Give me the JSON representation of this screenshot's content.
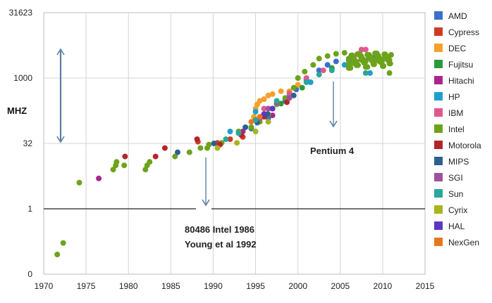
{
  "chart_data": {
    "type": "scatter",
    "title": "",
    "xlabel": "",
    "ylabel": "MHZ",
    "xlim": [
      1970,
      2015
    ],
    "x_ticks": [
      "1970",
      "1975",
      "1980",
      "1985",
      "1990",
      "1995",
      "2000",
      "2005",
      "2010",
      "2015"
    ],
    "y_scale": "log",
    "y_ticks": [
      "0",
      "1",
      "32",
      "1000",
      "31623"
    ],
    "grid": true,
    "legend_position": "right",
    "colors": {
      "AMD": "#3b6fc9",
      "Cypress": "#d03a26",
      "DEC": "#f2a12b",
      "Fujitsu": "#2a9a38",
      "Hitachi": "#a8268e",
      "HP": "#1f9fcf",
      "IBM": "#e0588e",
      "Intel": "#6ca31b",
      "Motorola": "#b3252a",
      "MIPS": "#2e5f91",
      "SGI": "#a0509e",
      "Sun": "#2aa79b",
      "Cyrix": "#a7b51e",
      "HAL": "#5e36c4",
      "NexGen": "#e8761c"
    },
    "series": [
      {
        "name": "AMD",
        "points": [
          [
            1994.5,
            70
          ],
          [
            1995.2,
            95
          ],
          [
            1996.5,
            120
          ],
          [
            1998.5,
            300
          ],
          [
            1999.8,
            550
          ],
          [
            2001,
            900
          ],
          [
            2002.5,
            1500
          ],
          [
            2003.5,
            2000
          ],
          [
            2004.5,
            2400
          ],
          [
            2006,
            2600
          ],
          [
            2007.5,
            2800
          ],
          [
            2009,
            3000
          ]
        ]
      },
      {
        "name": "Cypress",
        "points": [
          [
            1988.2,
            35
          ],
          [
            1990.5,
            33
          ],
          [
            1992,
            40
          ],
          [
            1993.5,
            45
          ]
        ]
      },
      {
        "name": "DEC",
        "points": [
          [
            1994.8,
            130
          ],
          [
            1995,
            200
          ],
          [
            1995.2,
            250
          ],
          [
            1995.5,
            300
          ],
          [
            1996,
            330
          ],
          [
            1996.5,
            400
          ],
          [
            1997,
            430
          ],
          [
            1998,
            500
          ],
          [
            1999,
            500
          ],
          [
            2000,
            700
          ]
        ]
      },
      {
        "name": "Fujitsu",
        "points": [
          [
            1996,
            150
          ],
          [
            1998,
            260
          ],
          [
            2000.5,
            600
          ],
          [
            2004,
            1700
          ],
          [
            2008,
            2500
          ]
        ]
      },
      {
        "name": "Hitachi",
        "points": [
          [
            1976.5,
            5
          ],
          [
            1993.5,
            60
          ],
          [
            1997,
            140
          ]
        ]
      },
      {
        "name": "HP",
        "points": [
          [
            1992,
            60
          ],
          [
            1995,
            170
          ],
          [
            1999,
            400
          ],
          [
            2001.5,
            800
          ],
          [
            2005.5,
            2000
          ],
          [
            2008.5,
            1300
          ]
        ]
      },
      {
        "name": "IBM",
        "points": [
          [
            1996,
            200
          ],
          [
            1999,
            450
          ],
          [
            2001,
            1000
          ],
          [
            2003,
            1500
          ],
          [
            2007,
            3500
          ],
          [
            2007.5,
            4500
          ],
          [
            2008,
            4500
          ]
        ]
      },
      {
        "name": "Intel",
        "points": [
          [
            1971.6,
            0.2
          ],
          [
            1972.3,
            0.3
          ],
          [
            1974.2,
            4
          ],
          [
            1978.2,
            8
          ],
          [
            1978.5,
            10
          ],
          [
            1978.6,
            12
          ],
          [
            1979.5,
            10
          ],
          [
            1982,
            8
          ],
          [
            1982.2,
            10
          ],
          [
            1982.5,
            12
          ],
          [
            1985.5,
            16
          ],
          [
            1987.2,
            20
          ],
          [
            1988.5,
            25
          ],
          [
            1989.3,
            25
          ],
          [
            1989.5,
            30
          ],
          [
            1991,
            33
          ],
          [
            1993,
            60
          ],
          [
            1994.5,
            75
          ],
          [
            1995.5,
            100
          ],
          [
            1996.5,
            150
          ],
          [
            1997.5,
            250
          ],
          [
            1998.5,
            350
          ],
          [
            1999.5,
            600
          ],
          [
            2000,
            1000
          ],
          [
            2000.8,
            1400
          ],
          [
            2001.8,
            2000
          ],
          [
            2002.5,
            2800
          ],
          [
            2003.5,
            3200
          ],
          [
            2004.5,
            3600
          ],
          [
            2005.5,
            3800
          ],
          [
            2006,
            2800
          ],
          [
            2006.5,
            2200
          ],
          [
            2007,
            2000
          ],
          [
            2007.5,
            2600
          ],
          [
            2008,
            2400
          ],
          [
            2008.5,
            2800
          ],
          [
            2009,
            2600
          ],
          [
            2009.5,
            2500
          ],
          [
            2010,
            2700
          ],
          [
            2010.5,
            3000
          ],
          [
            2010.8,
            1300
          ],
          [
            2011,
            3400
          ]
        ]
      },
      {
        "name": "Motorola",
        "points": [
          [
            1979.6,
            16
          ],
          [
            1983.2,
            16
          ],
          [
            1984.3,
            25
          ],
          [
            1988.1,
            40
          ],
          [
            1990.8,
            30
          ],
          [
            1993.3,
            50
          ],
          [
            1996,
            130
          ],
          [
            1997,
            200
          ],
          [
            1998.7,
            280
          ]
        ]
      },
      {
        "name": "MIPS",
        "points": [
          [
            1985.8,
            20
          ],
          [
            1990.1,
            32
          ],
          [
            1993.8,
            75
          ],
          [
            1995.2,
            100
          ],
          [
            1996.4,
            150
          ],
          [
            1999.5,
            400
          ]
        ]
      },
      {
        "name": "SGI",
        "points": [
          [
            1995.5,
            120
          ],
          [
            1996.5,
            200
          ],
          [
            1997.5,
            270
          ],
          [
            1999,
            350
          ]
        ]
      },
      {
        "name": "Sun",
        "points": [
          [
            1991.5,
            40
          ],
          [
            1993,
            55
          ],
          [
            1995,
            110
          ],
          [
            1997.5,
            300
          ],
          [
            2001,
            800
          ],
          [
            2002.5,
            1200
          ],
          [
            2004,
            1500
          ],
          [
            2006,
            1800
          ],
          [
            2008,
            1300
          ]
        ]
      },
      {
        "name": "Cyrix",
        "points": [
          [
            1990.5,
            25
          ],
          [
            1992.8,
            33
          ],
          [
            1995,
            60
          ],
          [
            1996.5,
            100
          ]
        ]
      },
      {
        "name": "HAL",
        "points": [
          [
            1996,
            150
          ],
          [
            1997,
            200
          ]
        ]
      },
      {
        "name": "NexGen",
        "points": [
          [
            1994.5,
            100
          ],
          [
            1995.5,
            130
          ]
        ]
      }
    ],
    "annotations": [
      {
        "text": "Pentium 4",
        "x": 2004,
        "y": 32
      },
      {
        "text": "80486 Intel 1986",
        "x": 1989,
        "y": 0.6
      },
      {
        "text": "Young et al 1992",
        "x": 1989,
        "y": 0.4
      }
    ],
    "legend": [
      "AMD",
      "Cypress",
      "DEC",
      "Fujitsu",
      "Hitachi",
      "HP",
      "IBM",
      "Intel",
      "Motorola",
      "MIPS",
      "SGI",
      "Sun",
      "Cyrix",
      "HAL",
      "NexGen"
    ]
  }
}
